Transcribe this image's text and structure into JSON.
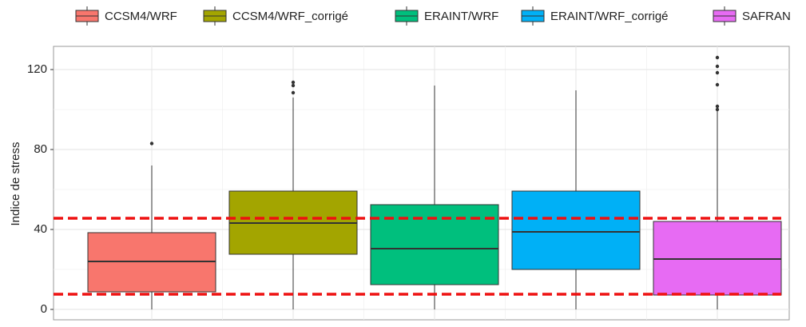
{
  "chart_data": {
    "type": "boxplot",
    "y_label": "Indice de stress",
    "ylim": [
      -5.2,
      131.6
    ],
    "yticks": [
      0,
      40,
      80,
      120
    ],
    "minor_yticks": [
      20,
      60,
      100
    ],
    "grid": true,
    "legend_position": "top",
    "series": [
      {
        "name": "CCSM4/WRF",
        "color": "#f8766d",
        "min": 0,
        "q1": 8.8,
        "median": 24,
        "q3": 38.4,
        "max": 72,
        "outliers": [
          83
        ]
      },
      {
        "name": "CCSM4/WRF_corrigé",
        "color": "#a3a500",
        "min": 0,
        "q1": 27.6,
        "median": 43.2,
        "q3": 59.2,
        "max": 106,
        "outliers": [
          113.6,
          112,
          108.4
        ]
      },
      {
        "name": "ERAINT/WRF",
        "color": "#00bf7d",
        "min": 0,
        "q1": 12.4,
        "median": 30.4,
        "q3": 52.4,
        "max": 112,
        "outliers": []
      },
      {
        "name": "ERAINT/WRF_corrigé",
        "color": "#00b0f6",
        "min": 0,
        "q1": 20,
        "median": 38.8,
        "q3": 59.2,
        "max": 109.6,
        "outliers": []
      },
      {
        "name": "SAFRAN",
        "color": "#e76bf3",
        "min": 0,
        "q1": 7.2,
        "median": 25.2,
        "q3": 44,
        "max": 100.4,
        "outliers": [
          126,
          121.6,
          118.4,
          112.4,
          101.6,
          100
        ]
      }
    ],
    "reference_lines": {
      "color": "#ee1111",
      "values": [
        45.6,
        7.6
      ]
    }
  }
}
